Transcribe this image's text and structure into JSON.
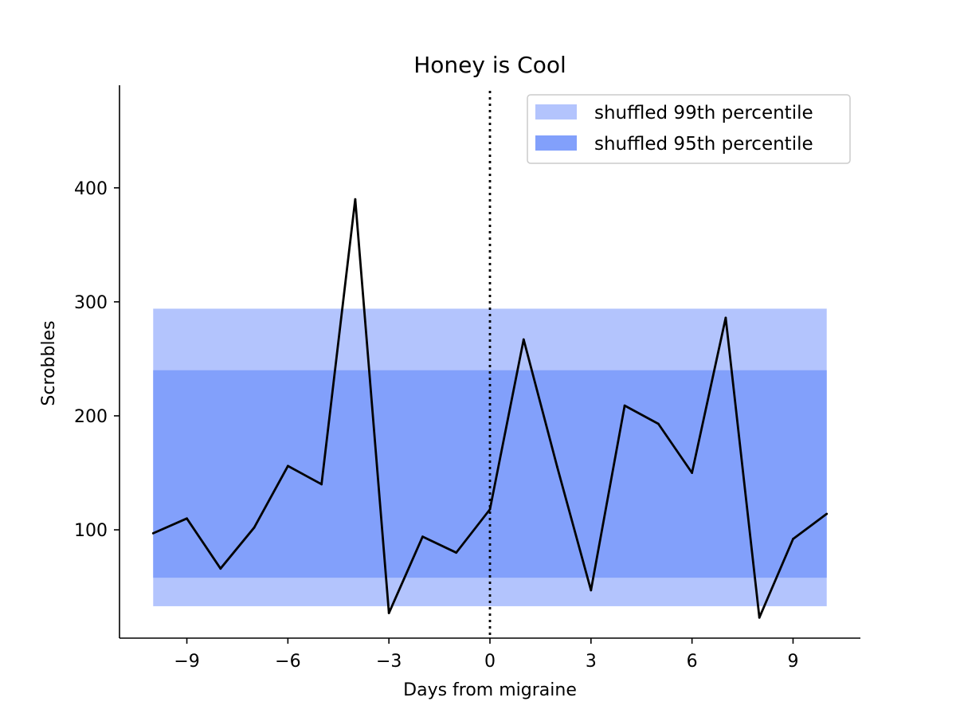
{
  "chart_data": {
    "type": "line",
    "title": "Honey is Cool",
    "xlabel": "Days from migraine",
    "ylabel": "Scrobbles",
    "xlim": [
      -11,
      11
    ],
    "ylim": [
      5,
      490
    ],
    "xticks": [
      -9,
      -6,
      -3,
      0,
      3,
      6,
      9
    ],
    "xtick_labels": [
      "−9",
      "−6",
      "−3",
      "0",
      "3",
      "6",
      "9"
    ],
    "yticks": [
      100,
      200,
      300,
      400
    ],
    "ytick_labels": [
      "100",
      "200",
      "300",
      "400"
    ],
    "series": [
      {
        "name": "Scrobbles",
        "color": "#000000",
        "x": [
          -10,
          -9,
          -8,
          -7,
          -6,
          -5,
          -4,
          -3,
          -2,
          -1,
          0,
          1,
          2,
          3,
          4,
          5,
          6,
          7,
          8,
          9,
          10
        ],
        "values": [
          97,
          110,
          66,
          102,
          156,
          140,
          390,
          27,
          94,
          80,
          118,
          267,
          155,
          47,
          209,
          193,
          150,
          286,
          23,
          92,
          114
        ]
      }
    ],
    "bands": [
      {
        "name": "shuffled 99th percentile",
        "x_range": [
          -10,
          10
        ],
        "y_range": [
          33,
          294
        ],
        "color": "#b3c4fd"
      },
      {
        "name": "shuffled 95th percentile",
        "x_range": [
          -10,
          10
        ],
        "y_range": [
          58,
          240
        ],
        "color": "#82a0fb"
      }
    ],
    "vline": {
      "x": 0,
      "style": "dotted",
      "color": "#000000"
    },
    "legend": {
      "position": "top-right",
      "entries": [
        "shuffled 99th percentile",
        "shuffled 95th percentile"
      ]
    },
    "grid": false
  }
}
